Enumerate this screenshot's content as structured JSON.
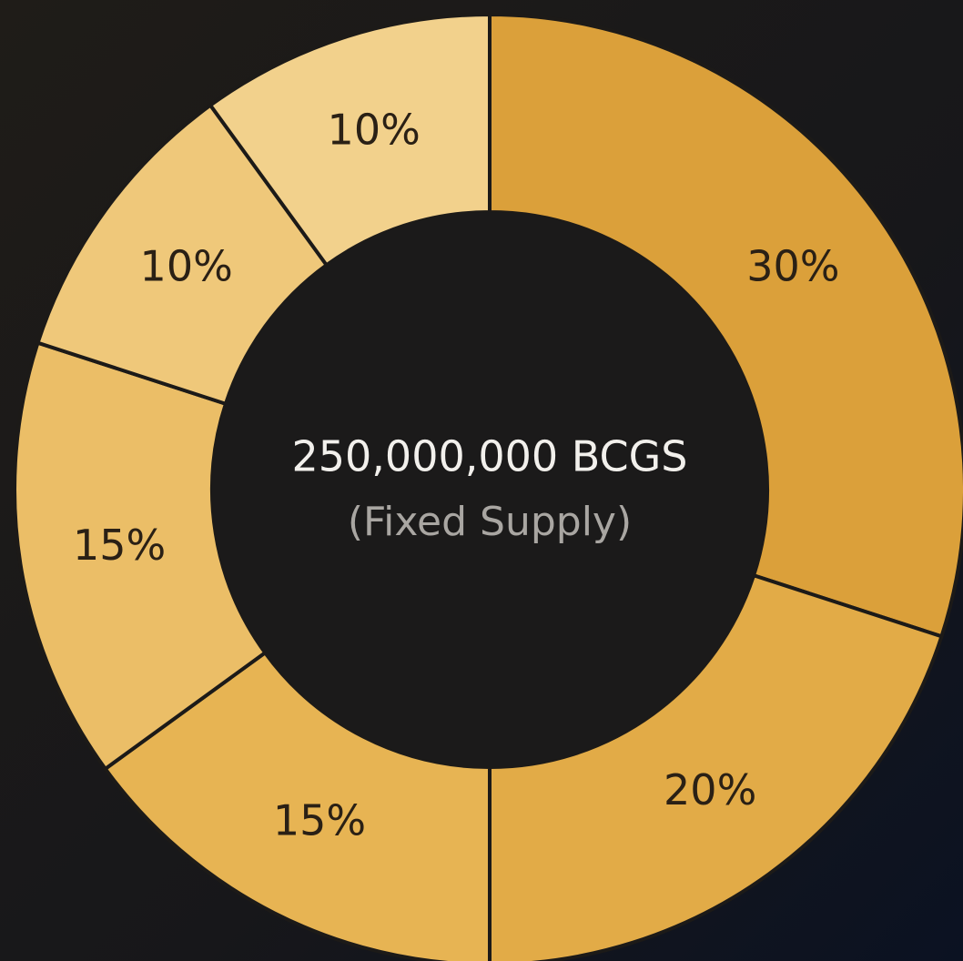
{
  "chart_data": {
    "type": "donut",
    "title": "250,000,000 BCGS",
    "subtitle": "(Fixed Supply)",
    "values": [
      30,
      20,
      15,
      15,
      10,
      10
    ],
    "value_labels": [
      "30%",
      "20%",
      "15%",
      "15%",
      "10%",
      "10%"
    ],
    "colors": [
      "#dba03a",
      "#e2ab47",
      "#e7b453",
      "#ebbe67",
      "#efc87a",
      "#f2d18c"
    ]
  }
}
